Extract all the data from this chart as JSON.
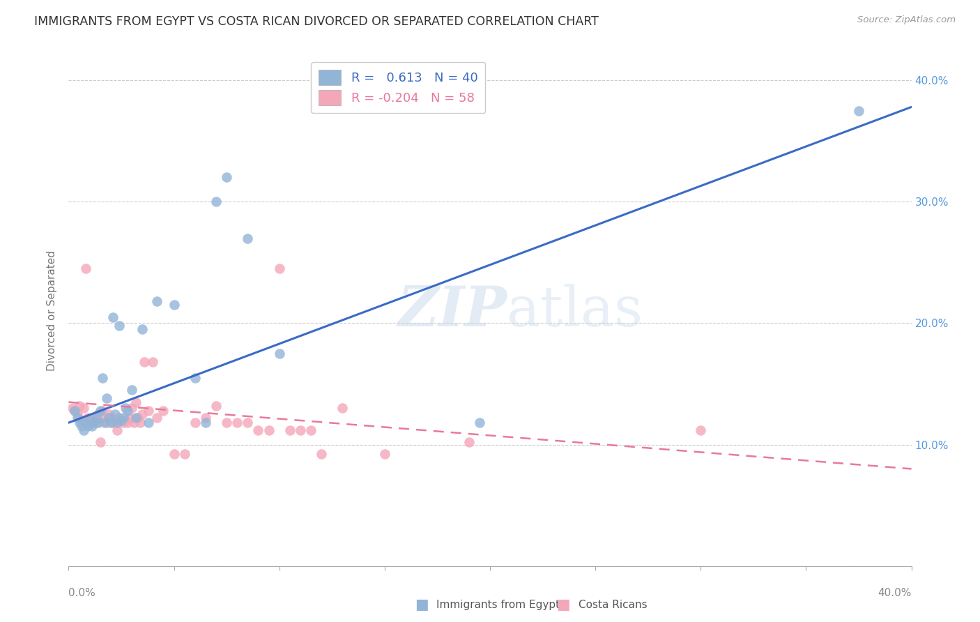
{
  "title": "IMMIGRANTS FROM EGYPT VS COSTA RICAN DIVORCED OR SEPARATED CORRELATION CHART",
  "source": "Source: ZipAtlas.com",
  "ylabel": "Divorced or Separated",
  "right_ytick_vals": [
    0.0,
    0.1,
    0.2,
    0.3,
    0.4
  ],
  "right_ytick_labels": [
    "",
    "10.0%",
    "20.0%",
    "30.0%",
    "40.0%"
  ],
  "xlim": [
    0.0,
    0.4
  ],
  "ylim": [
    0.0,
    0.42
  ],
  "blue_color": "#92B4D7",
  "pink_color": "#F4A7B9",
  "line_blue": "#3A6BC4",
  "line_pink": "#E8799A",
  "watermark_zip": "ZIP",
  "watermark_atlas": "atlas",
  "blue_scatter_x": [
    0.003,
    0.004,
    0.005,
    0.006,
    0.007,
    0.008,
    0.009,
    0.01,
    0.011,
    0.012,
    0.013,
    0.014,
    0.015,
    0.016,
    0.017,
    0.018,
    0.019,
    0.02,
    0.021,
    0.022,
    0.023,
    0.024,
    0.025,
    0.026,
    0.027,
    0.028,
    0.03,
    0.032,
    0.035,
    0.038,
    0.042,
    0.05,
    0.06,
    0.065,
    0.07,
    0.075,
    0.085,
    0.1,
    0.195,
    0.375
  ],
  "blue_scatter_y": [
    0.128,
    0.122,
    0.118,
    0.115,
    0.112,
    0.118,
    0.115,
    0.12,
    0.115,
    0.118,
    0.122,
    0.118,
    0.128,
    0.155,
    0.118,
    0.138,
    0.122,
    0.118,
    0.205,
    0.125,
    0.118,
    0.198,
    0.12,
    0.122,
    0.13,
    0.128,
    0.145,
    0.122,
    0.195,
    0.118,
    0.218,
    0.215,
    0.155,
    0.118,
    0.3,
    0.32,
    0.27,
    0.175,
    0.118,
    0.375
  ],
  "pink_scatter_x": [
    0.002,
    0.003,
    0.004,
    0.005,
    0.006,
    0.007,
    0.008,
    0.009,
    0.01,
    0.011,
    0.012,
    0.013,
    0.014,
    0.015,
    0.016,
    0.017,
    0.018,
    0.019,
    0.02,
    0.021,
    0.022,
    0.023,
    0.024,
    0.025,
    0.026,
    0.027,
    0.028,
    0.029,
    0.03,
    0.031,
    0.032,
    0.033,
    0.034,
    0.035,
    0.036,
    0.038,
    0.04,
    0.042,
    0.045,
    0.05,
    0.055,
    0.06,
    0.065,
    0.07,
    0.075,
    0.08,
    0.085,
    0.09,
    0.095,
    0.1,
    0.105,
    0.11,
    0.115,
    0.12,
    0.13,
    0.15,
    0.19,
    0.3
  ],
  "pink_scatter_y": [
    0.13,
    0.128,
    0.125,
    0.132,
    0.12,
    0.13,
    0.245,
    0.122,
    0.118,
    0.122,
    0.12,
    0.118,
    0.125,
    0.102,
    0.128,
    0.122,
    0.118,
    0.125,
    0.122,
    0.118,
    0.12,
    0.112,
    0.122,
    0.12,
    0.118,
    0.12,
    0.118,
    0.122,
    0.13,
    0.118,
    0.135,
    0.122,
    0.118,
    0.125,
    0.168,
    0.128,
    0.168,
    0.122,
    0.128,
    0.092,
    0.092,
    0.118,
    0.122,
    0.132,
    0.118,
    0.118,
    0.118,
    0.112,
    0.112,
    0.245,
    0.112,
    0.112,
    0.112,
    0.092,
    0.13,
    0.092,
    0.102,
    0.112
  ],
  "blue_line_x": [
    0.0,
    0.4
  ],
  "blue_line_y": [
    0.118,
    0.378
  ],
  "pink_line_x": [
    0.0,
    0.4
  ],
  "pink_line_y": [
    0.135,
    0.08
  ],
  "grid_color": "#CCCCCC",
  "bg_color": "#FFFFFF",
  "xtick_color": "#888888",
  "ytick_right_color": "#5599DD",
  "ylabel_color": "#777777",
  "title_color": "#333333",
  "source_color": "#999999"
}
